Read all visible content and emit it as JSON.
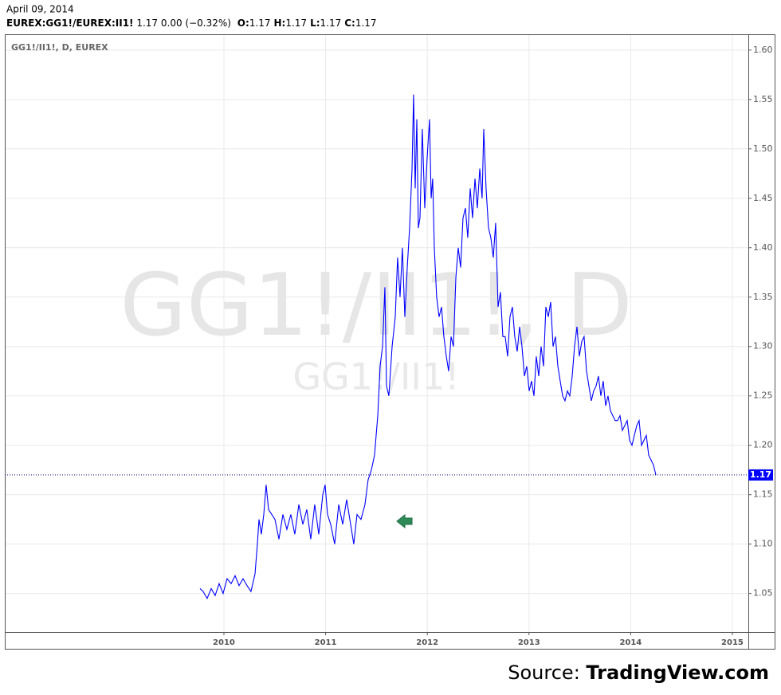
{
  "header": {
    "date": "April 09, 2014",
    "symbol": "EUREX:GG1!/EUREX:II1!",
    "change": "1.17 0.00 (−0.32%)",
    "ohlc": [
      {
        "label": "O:",
        "value": "1.17"
      },
      {
        "label": "H:",
        "value": "1.17"
      },
      {
        "label": "L:",
        "value": "1.17"
      },
      {
        "label": "C:",
        "value": "1.17"
      }
    ]
  },
  "chart_data": {
    "type": "line",
    "title": "GG1!/II1!, D, EUREX",
    "watermark": "GG1!/II1!, D",
    "watermark_sub": "GG1!/II1!",
    "color": "#0000ff",
    "grid": true,
    "last_value": 1.17,
    "xlim": [
      2007.845,
      2015.157
    ],
    "xticks": [
      2010,
      2011,
      2012,
      2013,
      2014,
      2015
    ],
    "ylim": [
      1.011,
      1.616
    ],
    "yticks": [
      1.05,
      {
        "value": 1.1,
        "label": "1.10"
      },
      1.15,
      {
        "value": 1.2,
        "label": "1.20"
      },
      1.25,
      {
        "value": 1.3,
        "label": "1.30"
      },
      1.35,
      {
        "value": 1.4,
        "label": "1.40"
      },
      1.45,
      {
        "value": 1.5,
        "label": "1.50"
      },
      1.55,
      {
        "value": 1.6,
        "label": "1.60"
      }
    ],
    "x": [
      2009.765,
      2009.796,
      2009.835,
      2009.875,
      2009.914,
      2009.953,
      2009.992,
      2010.031,
      2010.071,
      2010.11,
      2010.149,
      2010.188,
      2010.227,
      2010.266,
      2010.306,
      2010.329,
      2010.345,
      2010.368,
      2010.392,
      2010.415,
      2010.439,
      2010.47,
      2010.502,
      2010.541,
      2010.58,
      2010.619,
      2010.658,
      2010.697,
      2010.737,
      2010.776,
      2010.815,
      2010.854,
      2010.893,
      2010.933,
      2010.972,
      2010.995,
      2011.019,
      2011.05,
      2011.089,
      2011.129,
      2011.168,
      2011.207,
      2011.246,
      2011.277,
      2011.309,
      2011.348,
      2011.387,
      2011.418,
      2011.45,
      2011.481,
      2011.513,
      2011.536,
      2011.56,
      2011.583,
      2011.599,
      2011.622,
      2011.654,
      2011.685,
      2011.708,
      2011.732,
      2011.755,
      2011.779,
      2011.803,
      2011.826,
      2011.85,
      2011.865,
      2011.881,
      2011.897,
      2011.912,
      2011.928,
      2011.951,
      2011.975,
      2011.998,
      2012.022,
      2012.038,
      2012.053,
      2012.069,
      2012.092,
      2012.116,
      2012.14,
      2012.163,
      2012.187,
      2012.21,
      2012.234,
      2012.257,
      2012.281,
      2012.304,
      2012.328,
      2012.351,
      2012.375,
      2012.398,
      2012.422,
      2012.445,
      2012.469,
      2012.492,
      2012.516,
      2012.539,
      2012.555,
      2012.578,
      2012.602,
      2012.625,
      2012.649,
      2012.672,
      2012.696,
      2012.719,
      2012.743,
      2012.766,
      2012.79,
      2012.813,
      2012.837,
      2012.86,
      2012.884,
      2012.908,
      2012.931,
      2012.955,
      2012.978,
      2013.002,
      2013.025,
      2013.049,
      2013.072,
      2013.096,
      2013.119,
      2013.143,
      2013.166,
      2013.19,
      2013.213,
      2013.237,
      2013.26,
      2013.284,
      2013.307,
      2013.331,
      2013.354,
      2013.378,
      2013.401,
      2013.425,
      2013.448,
      2013.472,
      2013.495,
      2013.519,
      2013.542,
      2013.566,
      2013.589,
      2013.613,
      2013.636,
      2013.66,
      2013.683,
      2013.707,
      2013.73,
      2013.754,
      2013.777,
      2013.801,
      2013.824,
      2013.848,
      2013.871,
      2013.895,
      2013.918,
      2013.942,
      2013.966,
      2013.989,
      2014.013,
      2014.036,
      2014.06,
      2014.083,
      2014.107,
      2014.13,
      2014.154,
      2014.177,
      2014.201,
      2014.224,
      2014.248
    ],
    "values": [
      1.055,
      1.052,
      1.045,
      1.055,
      1.048,
      1.06,
      1.05,
      1.065,
      1.06,
      1.068,
      1.058,
      1.065,
      1.058,
      1.052,
      1.07,
      1.1,
      1.125,
      1.11,
      1.13,
      1.16,
      1.135,
      1.13,
      1.125,
      1.105,
      1.13,
      1.115,
      1.13,
      1.11,
      1.14,
      1.12,
      1.135,
      1.105,
      1.14,
      1.11,
      1.15,
      1.16,
      1.13,
      1.12,
      1.1,
      1.14,
      1.12,
      1.145,
      1.12,
      1.1,
      1.13,
      1.125,
      1.14,
      1.165,
      1.175,
      1.19,
      1.23,
      1.28,
      1.3,
      1.36,
      1.26,
      1.25,
      1.3,
      1.33,
      1.39,
      1.35,
      1.4,
      1.33,
      1.38,
      1.42,
      1.48,
      1.555,
      1.46,
      1.53,
      1.42,
      1.43,
      1.52,
      1.44,
      1.49,
      1.53,
      1.45,
      1.47,
      1.4,
      1.35,
      1.33,
      1.34,
      1.31,
      1.29,
      1.275,
      1.31,
      1.3,
      1.37,
      1.4,
      1.38,
      1.43,
      1.44,
      1.41,
      1.46,
      1.43,
      1.47,
      1.44,
      1.48,
      1.45,
      1.52,
      1.46,
      1.42,
      1.41,
      1.39,
      1.425,
      1.34,
      1.355,
      1.31,
      1.31,
      1.29,
      1.33,
      1.34,
      1.31,
      1.295,
      1.32,
      1.3,
      1.27,
      1.28,
      1.255,
      1.265,
      1.25,
      1.29,
      1.27,
      1.3,
      1.28,
      1.34,
      1.33,
      1.345,
      1.3,
      1.31,
      1.28,
      1.265,
      1.25,
      1.245,
      1.255,
      1.25,
      1.27,
      1.3,
      1.32,
      1.29,
      1.305,
      1.31,
      1.275,
      1.26,
      1.245,
      1.255,
      1.26,
      1.27,
      1.25,
      1.265,
      1.24,
      1.25,
      1.235,
      1.23,
      1.225,
      1.225,
      1.23,
      1.215,
      1.22,
      1.225,
      1.205,
      1.2,
      1.21,
      1.22,
      1.225,
      1.2,
      1.205,
      1.21,
      1.19,
      1.185,
      1.18,
      1.17
    ]
  },
  "source": {
    "prefix": "Source:",
    "name": "TradingView.com"
  }
}
